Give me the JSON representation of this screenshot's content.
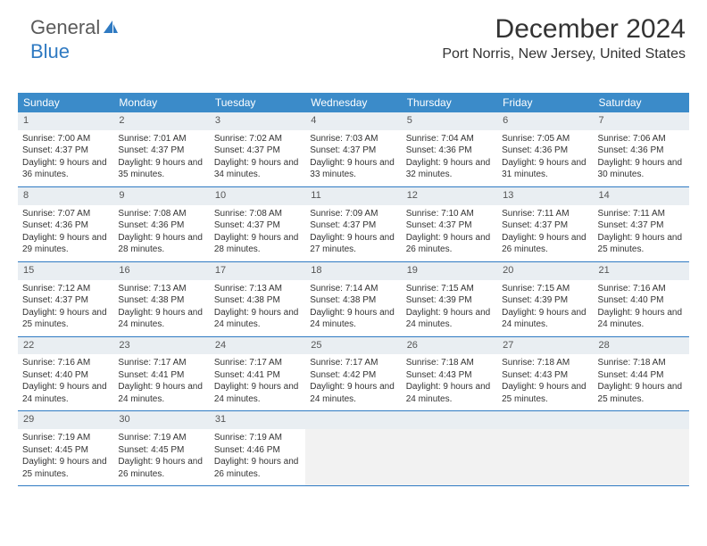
{
  "logo": {
    "text1": "General",
    "text2": "Blue"
  },
  "header": {
    "title": "December 2024",
    "location": "Port Norris, New Jersey, United States"
  },
  "calendar": {
    "header_bg": "#3b8bc9",
    "header_text_color": "#ffffff",
    "daynum_bg": "#e9eef2",
    "row_border_color": "#2f7ac2",
    "days": [
      "Sunday",
      "Monday",
      "Tuesday",
      "Wednesday",
      "Thursday",
      "Friday",
      "Saturday"
    ],
    "weeks": [
      [
        {
          "n": "1",
          "sr": "7:00 AM",
          "ss": "4:37 PM",
          "dl": "9 hours and 36 minutes."
        },
        {
          "n": "2",
          "sr": "7:01 AM",
          "ss": "4:37 PM",
          "dl": "9 hours and 35 minutes."
        },
        {
          "n": "3",
          "sr": "7:02 AM",
          "ss": "4:37 PM",
          "dl": "9 hours and 34 minutes."
        },
        {
          "n": "4",
          "sr": "7:03 AM",
          "ss": "4:37 PM",
          "dl": "9 hours and 33 minutes."
        },
        {
          "n": "5",
          "sr": "7:04 AM",
          "ss": "4:36 PM",
          "dl": "9 hours and 32 minutes."
        },
        {
          "n": "6",
          "sr": "7:05 AM",
          "ss": "4:36 PM",
          "dl": "9 hours and 31 minutes."
        },
        {
          "n": "7",
          "sr": "7:06 AM",
          "ss": "4:36 PM",
          "dl": "9 hours and 30 minutes."
        }
      ],
      [
        {
          "n": "8",
          "sr": "7:07 AM",
          "ss": "4:36 PM",
          "dl": "9 hours and 29 minutes."
        },
        {
          "n": "9",
          "sr": "7:08 AM",
          "ss": "4:36 PM",
          "dl": "9 hours and 28 minutes."
        },
        {
          "n": "10",
          "sr": "7:08 AM",
          "ss": "4:37 PM",
          "dl": "9 hours and 28 minutes."
        },
        {
          "n": "11",
          "sr": "7:09 AM",
          "ss": "4:37 PM",
          "dl": "9 hours and 27 minutes."
        },
        {
          "n": "12",
          "sr": "7:10 AM",
          "ss": "4:37 PM",
          "dl": "9 hours and 26 minutes."
        },
        {
          "n": "13",
          "sr": "7:11 AM",
          "ss": "4:37 PM",
          "dl": "9 hours and 26 minutes."
        },
        {
          "n": "14",
          "sr": "7:11 AM",
          "ss": "4:37 PM",
          "dl": "9 hours and 25 minutes."
        }
      ],
      [
        {
          "n": "15",
          "sr": "7:12 AM",
          "ss": "4:37 PM",
          "dl": "9 hours and 25 minutes."
        },
        {
          "n": "16",
          "sr": "7:13 AM",
          "ss": "4:38 PM",
          "dl": "9 hours and 24 minutes."
        },
        {
          "n": "17",
          "sr": "7:13 AM",
          "ss": "4:38 PM",
          "dl": "9 hours and 24 minutes."
        },
        {
          "n": "18",
          "sr": "7:14 AM",
          "ss": "4:38 PM",
          "dl": "9 hours and 24 minutes."
        },
        {
          "n": "19",
          "sr": "7:15 AM",
          "ss": "4:39 PM",
          "dl": "9 hours and 24 minutes."
        },
        {
          "n": "20",
          "sr": "7:15 AM",
          "ss": "4:39 PM",
          "dl": "9 hours and 24 minutes."
        },
        {
          "n": "21",
          "sr": "7:16 AM",
          "ss": "4:40 PM",
          "dl": "9 hours and 24 minutes."
        }
      ],
      [
        {
          "n": "22",
          "sr": "7:16 AM",
          "ss": "4:40 PM",
          "dl": "9 hours and 24 minutes."
        },
        {
          "n": "23",
          "sr": "7:17 AM",
          "ss": "4:41 PM",
          "dl": "9 hours and 24 minutes."
        },
        {
          "n": "24",
          "sr": "7:17 AM",
          "ss": "4:41 PM",
          "dl": "9 hours and 24 minutes."
        },
        {
          "n": "25",
          "sr": "7:17 AM",
          "ss": "4:42 PM",
          "dl": "9 hours and 24 minutes."
        },
        {
          "n": "26",
          "sr": "7:18 AM",
          "ss": "4:43 PM",
          "dl": "9 hours and 24 minutes."
        },
        {
          "n": "27",
          "sr": "7:18 AM",
          "ss": "4:43 PM",
          "dl": "9 hours and 25 minutes."
        },
        {
          "n": "28",
          "sr": "7:18 AM",
          "ss": "4:44 PM",
          "dl": "9 hours and 25 minutes."
        }
      ],
      [
        {
          "n": "29",
          "sr": "7:19 AM",
          "ss": "4:45 PM",
          "dl": "9 hours and 25 minutes."
        },
        {
          "n": "30",
          "sr": "7:19 AM",
          "ss": "4:45 PM",
          "dl": "9 hours and 26 minutes."
        },
        {
          "n": "31",
          "sr": "7:19 AM",
          "ss": "4:46 PM",
          "dl": "9 hours and 26 minutes."
        },
        null,
        null,
        null,
        null
      ]
    ],
    "labels": {
      "sunrise": "Sunrise: ",
      "sunset": "Sunset: ",
      "daylight": "Daylight: "
    }
  }
}
